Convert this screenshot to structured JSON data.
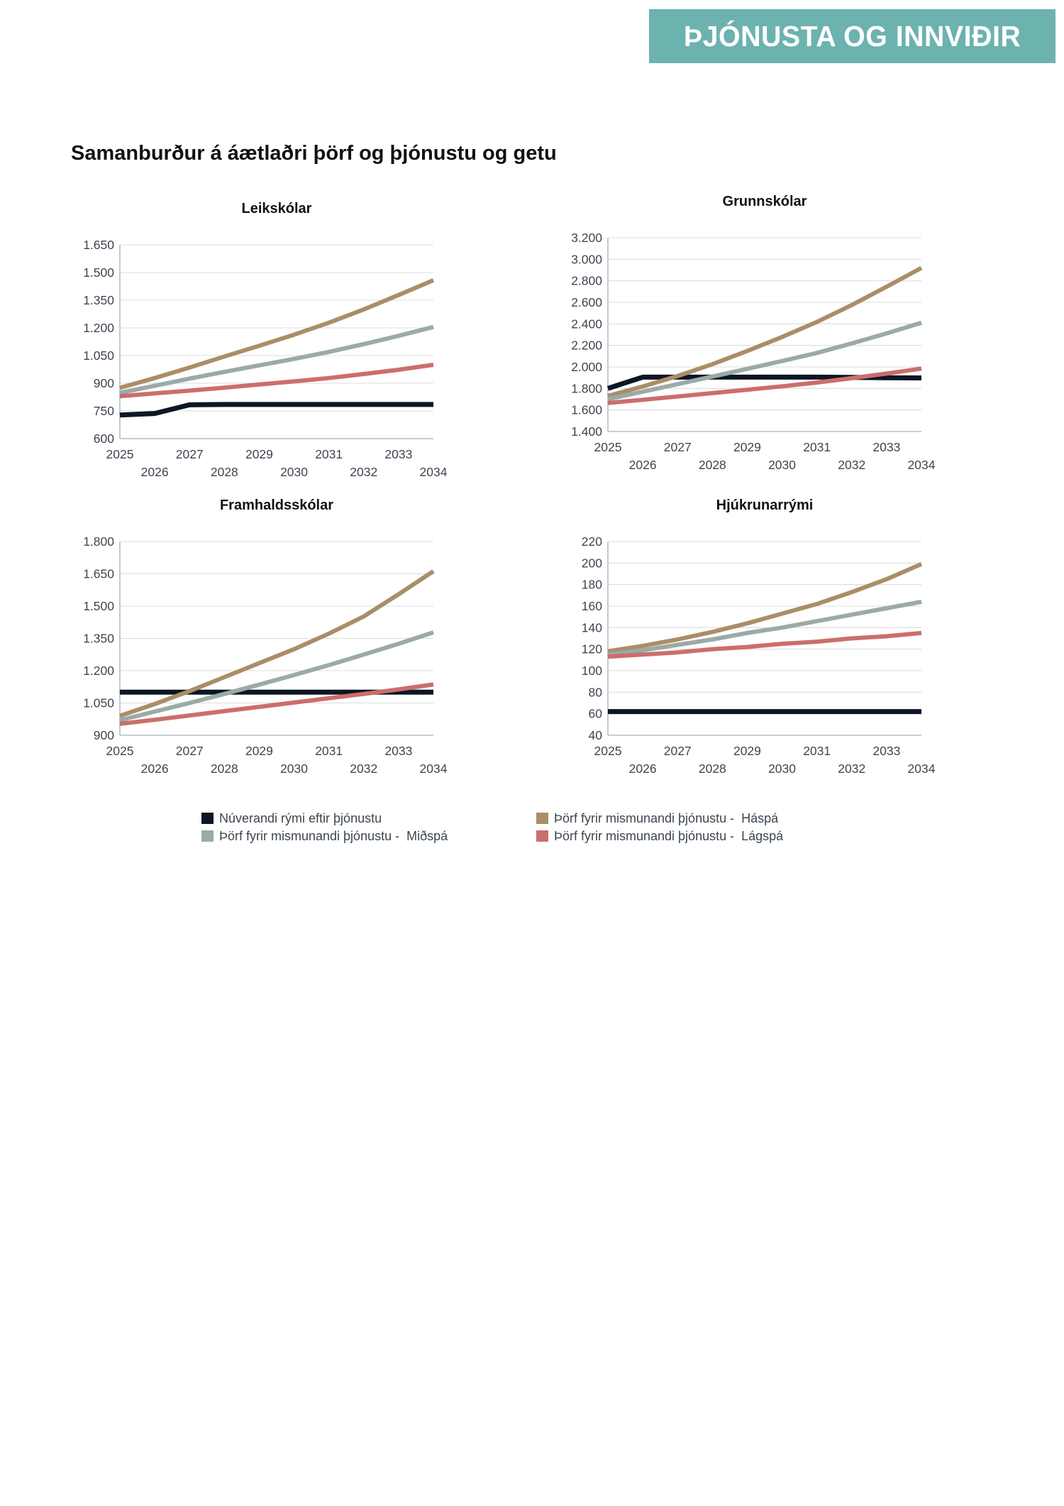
{
  "badge": {
    "label": "ÞJÓNUSTA OG INNVIÐIR",
    "bg": "#6cb2af",
    "text_color": "#ffffff"
  },
  "page_title": "Samanburður á áætlaðri þörf og þjónustu og getu",
  "colors": {
    "current": "#0c1624",
    "haspa": "#a98e67",
    "midspa": "#9baaa7",
    "lagspa": "#cb6e6b",
    "grid": "#dcdcdc",
    "axis": "#b3bdc9",
    "tick_text": "#3e4550",
    "title_text": "#111111",
    "legend_text": "#3c4650"
  },
  "legend": {
    "items": [
      {
        "key": "current",
        "label": "Núverandi rými eftir þjónustu"
      },
      {
        "key": "haspa",
        "label": "Þörf fyrir mismunandi þjónustu -  Háspá"
      },
      {
        "key": "midspa",
        "label": "Þörf fyrir mismunandi þjónustu -  Miðspá"
      },
      {
        "key": "lagspa",
        "label": "Þörf fyrir mismunandi þjónustu -  Lágspá"
      }
    ]
  },
  "chart_data": [
    {
      "id": "leikskolar",
      "type": "line",
      "title": "Leikskólar",
      "x": [
        2025,
        2026,
        2027,
        2028,
        2029,
        2030,
        2031,
        2032,
        2033,
        2034
      ],
      "ylim": [
        600,
        1650
      ],
      "yticks": [
        600,
        750,
        900,
        1050,
        1200,
        1350,
        1500,
        1650
      ],
      "yticklabels": [
        "600",
        "750",
        "900",
        "1.050",
        "1.200",
        "1.350",
        "1.500",
        "1.650"
      ],
      "grid": true,
      "legend_position": "bottom",
      "series": [
        {
          "key": "current",
          "name": "Núverandi rými eftir þjónustu",
          "values": [
            728,
            736,
            783,
            785,
            785,
            785,
            785,
            785,
            785,
            785
          ]
        },
        {
          "key": "haspa",
          "name": "Þörf fyrir mismunandi þjónustu - Háspá",
          "values": [
            875,
            928,
            985,
            1045,
            1103,
            1163,
            1228,
            1300,
            1378,
            1458
          ]
        },
        {
          "key": "midspa",
          "name": "Þörf fyrir mismunandi þjónustu - Miðspá",
          "values": [
            848,
            886,
            925,
            962,
            997,
            1032,
            1070,
            1112,
            1157,
            1205
          ]
        },
        {
          "key": "lagspa",
          "name": "Þörf fyrir mismunandi þjónustu - Lágspá",
          "values": [
            830,
            845,
            860,
            876,
            893,
            910,
            928,
            950,
            973,
            1000
          ]
        }
      ]
    },
    {
      "id": "grunnskolar",
      "type": "line",
      "title": "Grunnskólar",
      "x": [
        2025,
        2026,
        2027,
        2028,
        2029,
        2030,
        2031,
        2032,
        2033,
        2034
      ],
      "ylim": [
        1400,
        3200
      ],
      "yticks": [
        1400,
        1600,
        1800,
        2000,
        2200,
        2400,
        2600,
        2800,
        3000,
        3200
      ],
      "yticklabels": [
        "1.400",
        "1.600",
        "1.800",
        "2.000",
        "2.200",
        "2.400",
        "2.600",
        "2.800",
        "3.000",
        "3.200"
      ],
      "grid": true,
      "legend_position": "bottom",
      "series": [
        {
          "key": "current",
          "name": "Núverandi rými eftir þjónustu",
          "values": [
            1800,
            1905,
            1905,
            1905,
            1905,
            1905,
            1905,
            1903,
            1900,
            1898
          ]
        },
        {
          "key": "haspa",
          "name": "Þörf fyrir mismunandi þjónustu - Háspá",
          "values": [
            1730,
            1818,
            1915,
            2025,
            2148,
            2278,
            2418,
            2575,
            2745,
            2920
          ]
        },
        {
          "key": "midspa",
          "name": "Þörf fyrir mismunandi þjónustu - Miðspá",
          "values": [
            1700,
            1770,
            1840,
            1910,
            1982,
            2055,
            2130,
            2218,
            2312,
            2410
          ]
        },
        {
          "key": "lagspa",
          "name": "Þörf fyrir mismunandi þjónustu - Lágspá",
          "values": [
            1665,
            1695,
            1725,
            1757,
            1788,
            1820,
            1855,
            1895,
            1938,
            1985
          ]
        }
      ]
    },
    {
      "id": "framhaldsskolar",
      "type": "line",
      "title": "Framhaldsskólar",
      "x": [
        2025,
        2026,
        2027,
        2028,
        2029,
        2030,
        2031,
        2032,
        2033,
        2034
      ],
      "ylim": [
        900,
        1800
      ],
      "yticks": [
        900,
        1050,
        1200,
        1350,
        1500,
        1650,
        1800
      ],
      "yticklabels": [
        "900",
        "1.050",
        "1.200",
        "1.350",
        "1.500",
        "1.650",
        "1.800"
      ],
      "grid": true,
      "legend_position": "bottom",
      "series": [
        {
          "key": "current",
          "name": "Núverandi rými eftir þjónustu",
          "values": [
            1100,
            1100,
            1100,
            1100,
            1100,
            1100,
            1100,
            1100,
            1100,
            1100
          ]
        },
        {
          "key": "haspa",
          "name": "Þörf fyrir mismunandi þjónustu - Háspá",
          "values": [
            990,
            1045,
            1105,
            1170,
            1235,
            1300,
            1372,
            1452,
            1555,
            1662
          ]
        },
        {
          "key": "midspa",
          "name": "Þörf fyrir mismunandi þjónustu - Miðspá",
          "values": [
            970,
            1010,
            1050,
            1092,
            1135,
            1180,
            1226,
            1275,
            1325,
            1378
          ]
        },
        {
          "key": "lagspa",
          "name": "Þörf fyrir mismunandi þjónustu - Lágspá",
          "values": [
            953,
            972,
            992,
            1012,
            1032,
            1052,
            1072,
            1092,
            1113,
            1136
          ]
        }
      ]
    },
    {
      "id": "hjukrunarrymi",
      "type": "line",
      "title": "Hjúkrunarrými",
      "x": [
        2025,
        2026,
        2027,
        2028,
        2029,
        2030,
        2031,
        2032,
        2033,
        2034
      ],
      "ylim": [
        40,
        220
      ],
      "yticks": [
        40,
        60,
        80,
        100,
        120,
        140,
        160,
        180,
        200,
        220
      ],
      "yticklabels": [
        "40",
        "60",
        "80",
        "100",
        "120",
        "140",
        "160",
        "180",
        "200",
        "220"
      ],
      "grid": true,
      "legend_position": "bottom",
      "series": [
        {
          "key": "current",
          "name": "Núverandi rými eftir þjónustu",
          "values": [
            62,
            62,
            62,
            62,
            62,
            62,
            62,
            62,
            62,
            62
          ]
        },
        {
          "key": "haspa",
          "name": "Þörf fyrir mismunandi þjónustu - Háspá",
          "values": [
            118,
            123,
            129,
            136,
            144,
            153,
            162,
            173,
            185,
            199
          ]
        },
        {
          "key": "midspa",
          "name": "Þörf fyrir mismunandi þjónustu - Miðspá",
          "values": [
            115,
            119,
            124,
            129,
            135,
            140,
            146,
            152,
            158,
            164
          ]
        },
        {
          "key": "lagspa",
          "name": "Þörf fyrir mismunandi þjónustu - Lágspá",
          "values": [
            113,
            115,
            117,
            120,
            122,
            125,
            127,
            130,
            132,
            135
          ]
        }
      ]
    }
  ]
}
